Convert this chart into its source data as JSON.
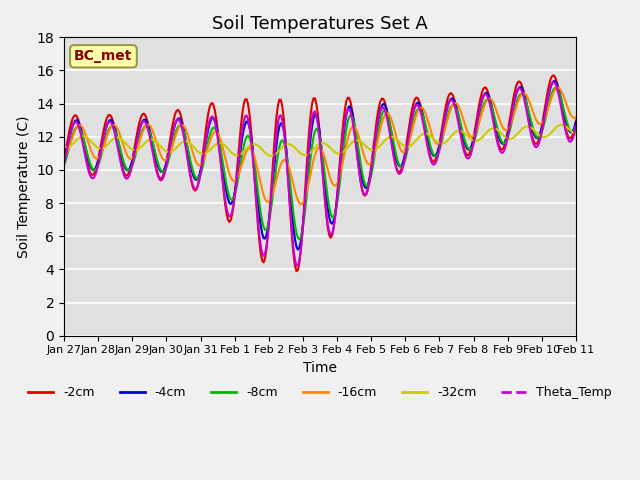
{
  "title": "Soil Temperatures Set A",
  "xlabel": "Time",
  "ylabel": "Soil Temperature (C)",
  "ylim": [
    0,
    18
  ],
  "yticks": [
    0,
    2,
    4,
    6,
    8,
    10,
    12,
    14,
    16,
    18
  ],
  "bg_color": "#e0e0e0",
  "annotation_text": "BC_met",
  "annotation_color": "#8B0000",
  "annotation_bg": "#ffffaa",
  "series_colors": {
    "-2cm": "#dd0000",
    "-4cm": "#0000cc",
    "-8cm": "#00bb00",
    "-16cm": "#ff8800",
    "-32cm": "#cccc00",
    "Theta_Temp": "#cc00cc"
  },
  "x_tick_labels": [
    "Jan 27",
    "Jan 28",
    "Jan 29",
    "Jan 30",
    "Jan 31",
    "Feb 1",
    "Feb 2",
    "Feb 3",
    "Feb 4",
    "Feb 5",
    "Feb 6",
    "Feb 7",
    "Feb 8",
    "Feb 9",
    "Feb 10",
    "Feb 11"
  ],
  "figsize": [
    6.4,
    4.8
  ],
  "dpi": 100
}
